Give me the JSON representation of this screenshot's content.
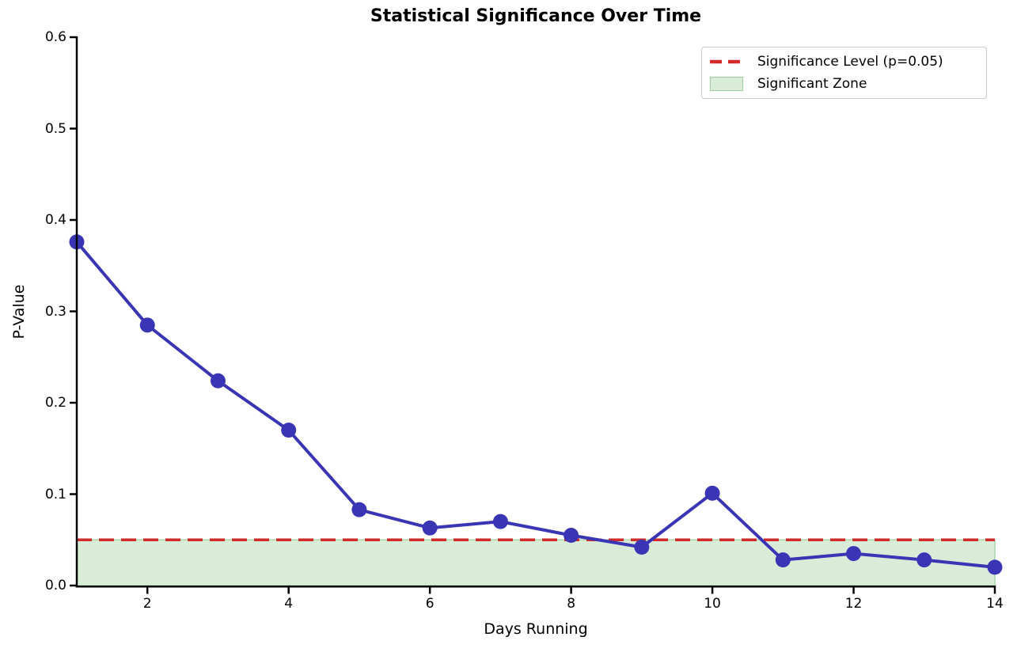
{
  "figure": {
    "title": "Statistical Significance Over Time",
    "xlabel": "Days Running",
    "ylabel": "P-Value"
  },
  "legend": {
    "position": "upper right",
    "entries": [
      {
        "label": "Significance Level (p=0.05)",
        "swatch": "dashed-line",
        "color": "#d22b2b"
      },
      {
        "label": "Significant Zone",
        "swatch": "patch",
        "fill": "#d8ecd8",
        "edge": "#9fce9f"
      }
    ]
  },
  "chart_data": {
    "type": "line",
    "title": "Statistical Significance Over Time",
    "xlabel": "Days Running",
    "ylabel": "P-Value",
    "x": [
      1,
      2,
      3,
      4,
      5,
      6,
      7,
      8,
      9,
      10,
      11,
      12,
      13,
      14
    ],
    "y": [
      0.376,
      0.285,
      0.224,
      0.17,
      0.083,
      0.063,
      0.07,
      0.055,
      0.042,
      0.101,
      0.028,
      0.035,
      0.028,
      0.02
    ],
    "xlim": [
      1,
      14
    ],
    "ylim": [
      0.0,
      0.6
    ],
    "xticks": [
      2,
      4,
      6,
      8,
      10,
      12,
      14
    ],
    "yticks": [
      0.0,
      0.1,
      0.2,
      0.3,
      0.4,
      0.5,
      0.6
    ],
    "significance_level": 0.05,
    "significant_zone": [
      0.0,
      0.05
    ],
    "line_color": "#3a35b5",
    "marker": "o",
    "significance_color": "#d22b2b",
    "zone_fill": "#d8ecd8",
    "zone_edge": "#a9d6a9",
    "legend": [
      "Significance Level (p=0.05)",
      "Significant Zone"
    ],
    "legend_position": "upper right",
    "grid": false
  }
}
